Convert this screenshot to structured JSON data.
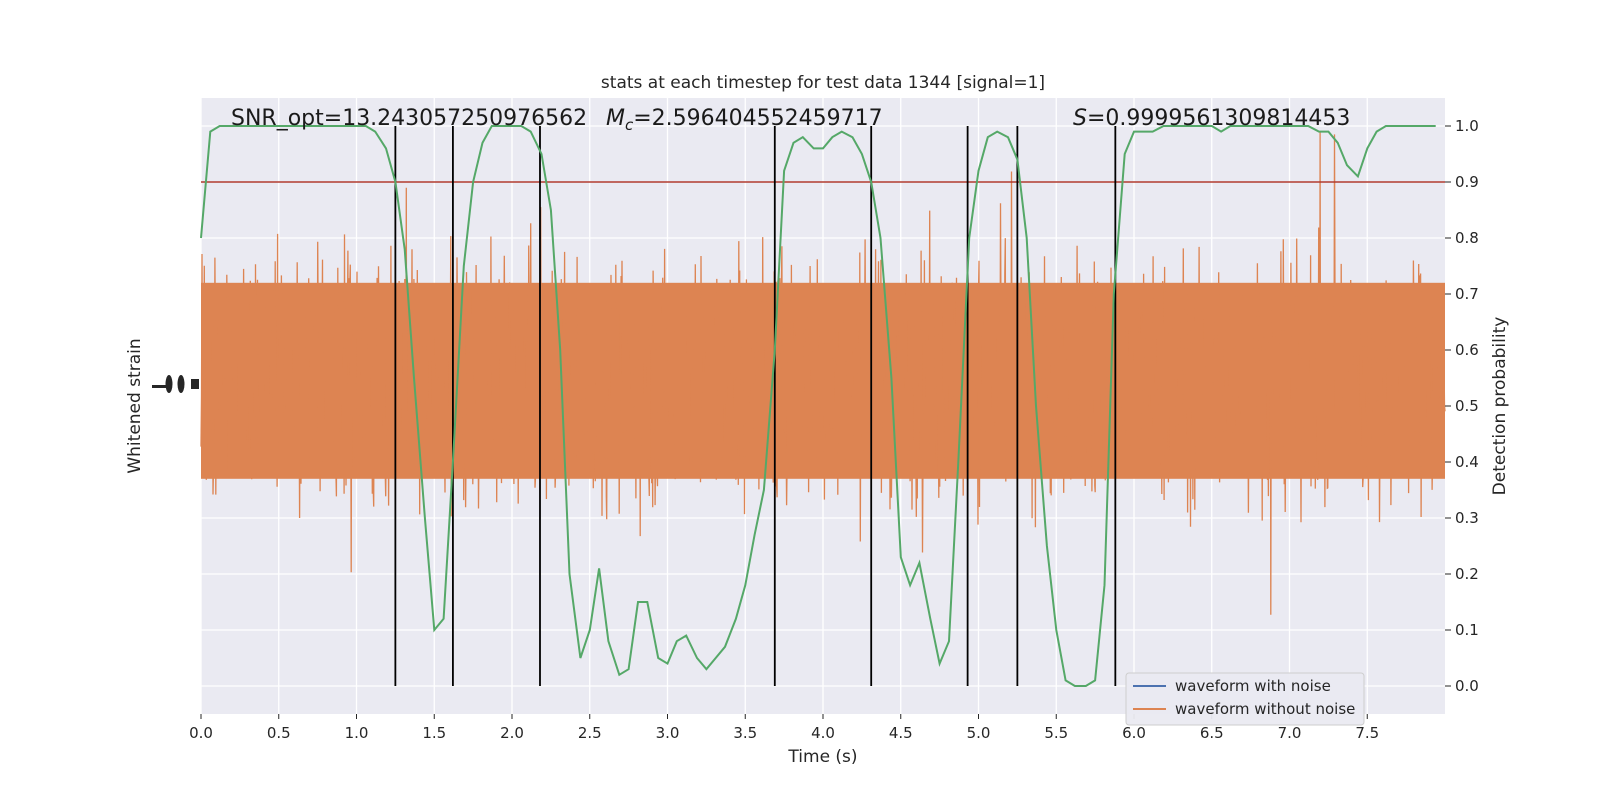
{
  "chart_data": {
    "type": "line",
    "title": "stats at each timestep for test data 1344 [signal=1]",
    "xlabel": "Time (s)",
    "ylabel_left": "Whitened strain",
    "ylabel_right": "Detection probability",
    "xlim": [
      0.0,
      8.0
    ],
    "ylim_right": [
      -0.05,
      1.05
    ],
    "x_ticks": [
      "0.0",
      "0.5",
      "1.0",
      "1.5",
      "2.0",
      "2.5",
      "3.0",
      "3.5",
      "4.0",
      "4.5",
      "5.0",
      "5.5",
      "6.0",
      "6.5",
      "7.0",
      "7.5"
    ],
    "y_ticks_right": [
      "0.0",
      "0.1",
      "0.2",
      "0.3",
      "0.4",
      "0.5",
      "0.6",
      "0.7",
      "0.8",
      "0.9",
      "1.0"
    ],
    "grid": true,
    "annotations": {
      "snr": "SNR_opt=13.243057250976562",
      "mc_symbol": "M",
      "mc_sub": "c",
      "mc_value": "=2.596404552459717",
      "s_symbol": "S",
      "s_value": "=0.9999561309814453"
    },
    "threshold": 0.9,
    "vertical_lines_x": [
      1.25,
      1.62,
      2.18,
      3.69,
      4.31,
      4.93,
      5.25,
      5.88
    ],
    "legend": {
      "position": "lower-right",
      "entries": [
        {
          "label": "waveform with noise",
          "color": "#4c72b0"
        },
        {
          "label": "waveform without noise",
          "color": "#dd8452"
        }
      ]
    },
    "series": [
      {
        "name": "detection probability",
        "color": "#55a868",
        "x": [
          0.0,
          0.06,
          0.12,
          0.19,
          0.25,
          0.31,
          0.37,
          0.44,
          0.5,
          0.56,
          0.62,
          0.69,
          0.75,
          0.81,
          0.87,
          0.94,
          1.0,
          1.06,
          1.12,
          1.19,
          1.25,
          1.31,
          1.37,
          1.44,
          1.5,
          1.56,
          1.62,
          1.69,
          1.75,
          1.81,
          1.87,
          1.94,
          2.0,
          2.06,
          2.12,
          2.19,
          2.25,
          2.31,
          2.37,
          2.44,
          2.5,
          2.56,
          2.62,
          2.69,
          2.75,
          2.81,
          2.87,
          2.94,
          3.0,
          3.06,
          3.12,
          3.19,
          3.25,
          3.31,
          3.37,
          3.44,
          3.5,
          3.56,
          3.62,
          3.69,
          3.75,
          3.81,
          3.87,
          3.94,
          4.0,
          4.06,
          4.12,
          4.19,
          4.25,
          4.31,
          4.37,
          4.44,
          4.5,
          4.56,
          4.62,
          4.69,
          4.75,
          4.81,
          4.87,
          4.94,
          5.0,
          5.06,
          5.12,
          5.19,
          5.25,
          5.31,
          5.37,
          5.44,
          5.5,
          5.56,
          5.62,
          5.69,
          5.75,
          5.81,
          5.87,
          5.94,
          6.0,
          6.06,
          6.12,
          6.19,
          6.25,
          6.31,
          6.37,
          6.44,
          6.5,
          6.56,
          6.62,
          6.69,
          6.75,
          6.81,
          6.87,
          6.94,
          7.0,
          7.06,
          7.12,
          7.19,
          7.25,
          7.31,
          7.37,
          7.44,
          7.5,
          7.56,
          7.62,
          7.69,
          7.75,
          7.81,
          7.87,
          7.94
        ],
        "values": [
          0.8,
          0.99,
          1.0,
          1.0,
          1.0,
          1.0,
          1.0,
          1.0,
          1.0,
          1.0,
          1.0,
          1.0,
          1.0,
          1.0,
          1.0,
          1.0,
          1.0,
          1.0,
          0.99,
          0.96,
          0.9,
          0.78,
          0.55,
          0.3,
          0.1,
          0.12,
          0.4,
          0.75,
          0.9,
          0.97,
          1.0,
          1.0,
          1.0,
          1.0,
          0.99,
          0.95,
          0.85,
          0.6,
          0.2,
          0.05,
          0.1,
          0.21,
          0.08,
          0.02,
          0.03,
          0.15,
          0.15,
          0.05,
          0.04,
          0.08,
          0.09,
          0.05,
          0.03,
          0.05,
          0.07,
          0.12,
          0.18,
          0.27,
          0.35,
          0.6,
          0.92,
          0.97,
          0.98,
          0.96,
          0.96,
          0.98,
          0.99,
          0.98,
          0.95,
          0.9,
          0.8,
          0.55,
          0.23,
          0.18,
          0.22,
          0.12,
          0.04,
          0.08,
          0.4,
          0.8,
          0.92,
          0.98,
          0.99,
          0.98,
          0.94,
          0.8,
          0.5,
          0.25,
          0.1,
          0.01,
          0.0,
          0.0,
          0.01,
          0.18,
          0.7,
          0.95,
          0.99,
          0.99,
          0.99,
          1.0,
          1.0,
          1.0,
          1.0,
          1.0,
          1.0,
          0.99,
          1.0,
          1.0,
          1.0,
          1.0,
          1.0,
          1.0,
          1.0,
          1.0,
          1.0,
          0.99,
          0.99,
          0.97,
          0.93,
          0.91,
          0.96,
          0.99,
          1.0,
          1.0,
          1.0,
          1.0,
          1.0,
          1.0
        ]
      }
    ]
  }
}
